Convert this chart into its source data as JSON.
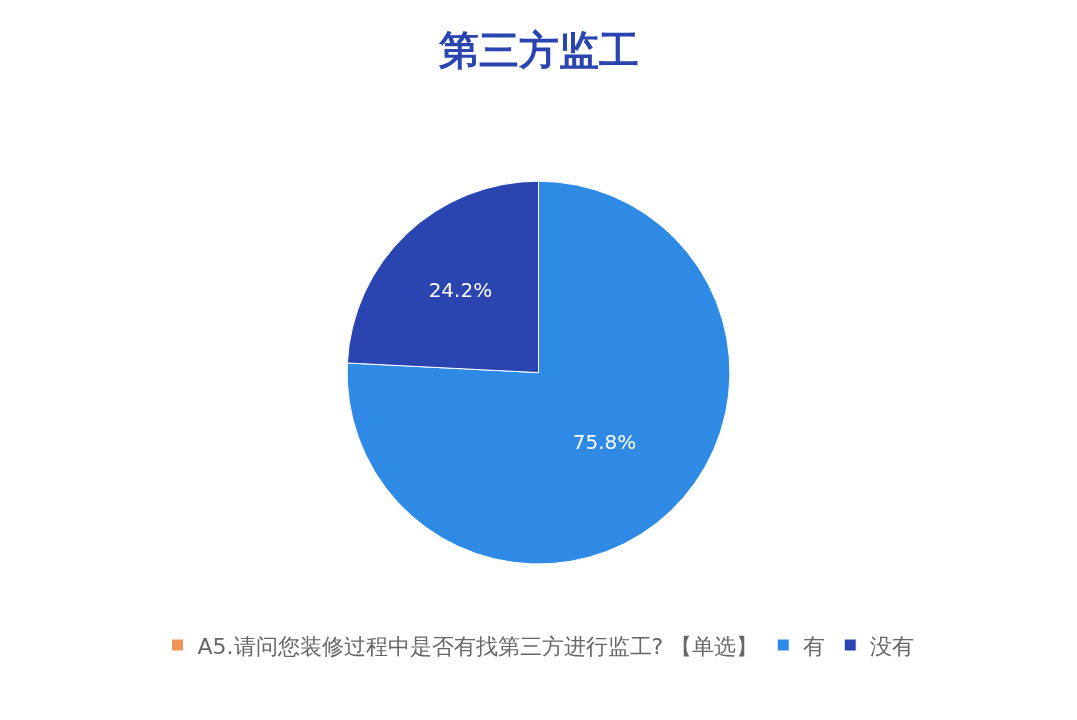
{
  "chart_data": {
    "type": "pie",
    "title": "第三方监工",
    "categories": [
      "A5.请问您装修过程中是否有找第三方进行监工? 【单选】",
      "有",
      "没有"
    ],
    "values": [
      0,
      75.8,
      24.2
    ],
    "colors": [
      "#f0955a",
      "#2f8ae6",
      "#2a44b0"
    ],
    "value_labels": [
      null,
      "75.8%",
      "24.2%"
    ],
    "legend": "bottom"
  }
}
